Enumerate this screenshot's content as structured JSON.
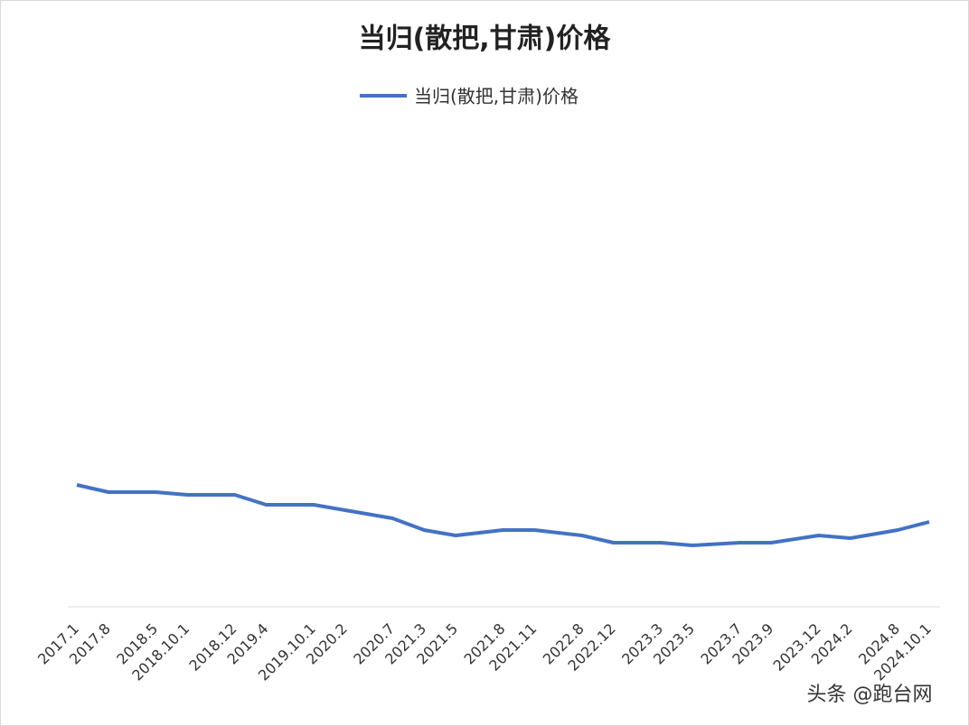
{
  "chart_data": {
    "type": "line",
    "title": "当归(散把,甘肃)价格",
    "watermark": "头条 @跑台网",
    "categories": [
      "2017.1",
      null,
      "2017.8",
      null,
      null,
      "2018.5",
      null,
      "2018.10.1",
      null,
      null,
      "2018.12",
      null,
      "2019.4",
      null,
      null,
      "2019.10.1",
      null,
      "2020.2",
      null,
      null,
      "2020.7",
      null,
      "2021.3",
      null,
      "2021.5",
      null,
      null,
      "2021.8",
      null,
      "2021.11",
      null,
      null,
      "2022.8",
      null,
      "2022.12",
      null,
      null,
      "2023.3",
      null,
      "2023.5",
      null,
      null,
      "2023.7",
      null,
      "2023.9",
      null,
      null,
      "2023.12",
      null,
      "2024.2",
      null,
      null,
      "2024.8",
      null,
      "2024.10.1"
    ],
    "series": [
      {
        "name": "当归(散把,甘肃)价格",
        "color": "#4472c4",
        "values": [
          135,
          null,
          127,
          null,
          null,
          127,
          null,
          124,
          null,
          null,
          124,
          null,
          113,
          null,
          null,
          113,
          null,
          107,
          null,
          null,
          98,
          null,
          85,
          null,
          79,
          null,
          null,
          85,
          null,
          85,
          null,
          null,
          79,
          null,
          71,
          null,
          null,
          71,
          null,
          68,
          null,
          null,
          71,
          null,
          71,
          null,
          null,
          79,
          null,
          76,
          null,
          null,
          85,
          null,
          94
        ]
      }
    ],
    "ylim": [
      0,
      480
    ]
  }
}
